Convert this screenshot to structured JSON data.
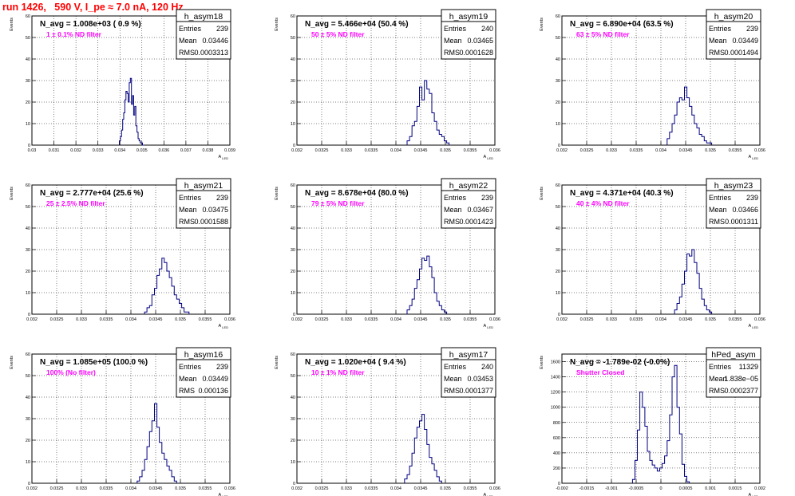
{
  "page_title": "run 1426,   590 V, I_pe ≈ 7.0 nA, 120 Hz",
  "y_axis_title": "Events",
  "x_axis_title": "A_LED",
  "stats_labels": {
    "entries": "Entries",
    "mean": "Mean",
    "rms": "RMS"
  },
  "colors": {
    "histogram": "#000080",
    "annotation": "#ff00ff",
    "title": "#ff0000",
    "grid": "#000000"
  },
  "chart_data": [
    {
      "type": "bar",
      "name": "h_asym18",
      "navg": "N_avg = 1.008e+03 ( 0.9 %)",
      "filter": "1 ± 0.1% ND filter",
      "stats": {
        "entries": "239",
        "mean": "0.03446",
        "rms": "0.0003313"
      },
      "xlim": [
        0.03,
        0.039
      ],
      "ylim": [
        0,
        60
      ],
      "xticks": [
        "0.03",
        "0.031",
        "0.032",
        "0.033",
        "0.034",
        "0.035",
        "0.036",
        "0.037",
        "0.038",
        "0.039"
      ],
      "yticks": [
        "0",
        "10",
        "20",
        "30",
        "40",
        "50",
        "60"
      ],
      "x": [
        0.034,
        0.03405,
        0.0341,
        0.03415,
        0.0342,
        0.03425,
        0.0343,
        0.03435,
        0.0344,
        0.03445,
        0.0345,
        0.03455,
        0.0346,
        0.03465,
        0.0347,
        0.03475,
        0.0348,
        0.03485,
        0.0349,
        0.03495,
        0.035,
        0.03505
      ],
      "values": [
        2,
        4,
        7,
        12,
        15,
        21,
        25,
        24,
        20,
        29,
        31,
        19,
        23,
        14,
        18,
        9,
        6,
        3,
        2,
        1,
        1,
        0
      ]
    },
    {
      "type": "bar",
      "name": "h_asym19",
      "navg": "N_avg = 5.466e+04 (50.4 %)",
      "filter": "50 ± 5% ND filter",
      "stats": {
        "entries": "240",
        "mean": "0.03465",
        "rms": "0.0001628"
      },
      "xlim": [
        0.032,
        0.036
      ],
      "ylim": [
        0,
        60
      ],
      "xticks": [
        "0.032",
        "0.0325",
        "0.033",
        "0.0335",
        "0.034",
        "0.0345",
        "0.035",
        "0.0355",
        "0.036"
      ],
      "yticks": [
        "0",
        "10",
        "20",
        "30",
        "40",
        "50",
        "60"
      ],
      "x": [
        0.03425,
        0.0343,
        0.03435,
        0.0344,
        0.03445,
        0.0345,
        0.03455,
        0.0346,
        0.03465,
        0.0347,
        0.03475,
        0.0348,
        0.03485,
        0.0349,
        0.03495,
        0.035,
        0.03505
      ],
      "values": [
        2,
        4,
        9,
        11,
        18,
        27,
        21,
        30,
        26,
        24,
        15,
        11,
        7,
        5,
        4,
        2,
        1
      ]
    },
    {
      "type": "bar",
      "name": "h_asym20",
      "navg": "N_avg = 6.890e+04 (63.5 %)",
      "filter": "63 ± 5% ND filter",
      "stats": {
        "entries": "239",
        "mean": "0.03449",
        "rms": "0.0001494"
      },
      "xlim": [
        0.032,
        0.036
      ],
      "ylim": [
        0,
        60
      ],
      "xticks": [
        "0.032",
        "0.0325",
        "0.033",
        "0.0335",
        "0.034",
        "0.0345",
        "0.035",
        "0.0355",
        "0.036"
      ],
      "yticks": [
        "0",
        "10",
        "20",
        "30",
        "40",
        "50",
        "60"
      ],
      "x": [
        0.03415,
        0.0342,
        0.03425,
        0.0343,
        0.03435,
        0.0344,
        0.03445,
        0.0345,
        0.03455,
        0.0346,
        0.03465,
        0.0347,
        0.03475,
        0.0348,
        0.03485,
        0.0349,
        0.03495,
        0.035
      ],
      "values": [
        3,
        6,
        10,
        14,
        20,
        22,
        21,
        27,
        22,
        18,
        14,
        10,
        8,
        5,
        4,
        2,
        1,
        1
      ]
    },
    {
      "type": "bar",
      "name": "h_asym21",
      "navg": "N_avg = 2.777e+04 (25.6 %)",
      "filter": "25 ± 2.5% ND filter",
      "stats": {
        "entries": "239",
        "mean": "0.03475",
        "rms": "0.0001588"
      },
      "xlim": [
        0.032,
        0.036
      ],
      "ylim": [
        0,
        60
      ],
      "xticks": [
        "0.032",
        "0.0325",
        "0.033",
        "0.0335",
        "0.034",
        "0.0345",
        "0.035",
        "0.0355",
        "0.036"
      ],
      "yticks": [
        "0",
        "10",
        "20",
        "30",
        "40",
        "50",
        "60"
      ],
      "x": [
        0.0343,
        0.03435,
        0.0344,
        0.03445,
        0.0345,
        0.03455,
        0.0346,
        0.03465,
        0.0347,
        0.03475,
        0.0348,
        0.03485,
        0.0349,
        0.03495,
        0.035,
        0.03505,
        0.0351,
        0.03515
      ],
      "values": [
        1,
        3,
        4,
        9,
        12,
        18,
        21,
        26,
        24,
        20,
        17,
        13,
        9,
        7,
        5,
        3,
        1,
        1
      ]
    },
    {
      "type": "bar",
      "name": "h_asym22",
      "navg": "N_avg = 8.678e+04 (80.0 %)",
      "filter": "79 ± 5% ND filter",
      "stats": {
        "entries": "239",
        "mean": "0.03467",
        "rms": "0.0001423"
      },
      "xlim": [
        0.032,
        0.036
      ],
      "ylim": [
        0,
        60
      ],
      "xticks": [
        "0.032",
        "0.0325",
        "0.033",
        "0.0335",
        "0.034",
        "0.0345",
        "0.035",
        "0.0355",
        "0.036"
      ],
      "yticks": [
        "0",
        "10",
        "20",
        "30",
        "40",
        "50",
        "60"
      ],
      "x": [
        0.03425,
        0.0343,
        0.03435,
        0.0344,
        0.03445,
        0.0345,
        0.03455,
        0.0346,
        0.03465,
        0.0347,
        0.03475,
        0.0348,
        0.03485,
        0.0349,
        0.03495,
        0.035
      ],
      "values": [
        2,
        4,
        7,
        12,
        16,
        21,
        26,
        25,
        27,
        22,
        17,
        10,
        6,
        4,
        2,
        1
      ]
    },
    {
      "type": "bar",
      "name": "h_asym23",
      "navg": "N_avg = 4.371e+04 (40.3 %)",
      "filter": "40 ± 4% ND filter",
      "stats": {
        "entries": "239",
        "mean": "0.03466",
        "rms": "0.0001311"
      },
      "xlim": [
        0.032,
        0.036
      ],
      "ylim": [
        0,
        60
      ],
      "xticks": [
        "0.032",
        "0.0325",
        "0.033",
        "0.0335",
        "0.034",
        "0.0345",
        "0.035",
        "0.0355",
        "0.036"
      ],
      "yticks": [
        "0",
        "10",
        "20",
        "30",
        "40",
        "50",
        "60"
      ],
      "x": [
        0.0343,
        0.03435,
        0.0344,
        0.03445,
        0.0345,
        0.03455,
        0.0346,
        0.03465,
        0.0347,
        0.03475,
        0.0348,
        0.03485,
        0.0349,
        0.03495,
        0.035
      ],
      "values": [
        2,
        5,
        8,
        14,
        20,
        28,
        27,
        30,
        24,
        19,
        12,
        7,
        4,
        2,
        1
      ]
    },
    {
      "type": "bar",
      "name": "h_asym16",
      "navg": "N_avg = 1.085e+05 (100.0 %)",
      "filter": "100% (No filter)",
      "stats": {
        "entries": "239",
        "mean": "0.03449",
        "rms": "0.000136"
      },
      "xlim": [
        0.032,
        0.036
      ],
      "ylim": [
        0,
        60
      ],
      "xticks": [
        "0.032",
        "0.0325",
        "0.033",
        "0.0335",
        "0.034",
        "0.0345",
        "0.035",
        "0.0355",
        "0.036"
      ],
      "yticks": [
        "0",
        "10",
        "20",
        "30",
        "40",
        "50",
        "60"
      ],
      "x": [
        0.03415,
        0.0342,
        0.03425,
        0.0343,
        0.03435,
        0.0344,
        0.03445,
        0.0345,
        0.03455,
        0.0346,
        0.03465,
        0.0347,
        0.03475,
        0.0348,
        0.03485,
        0.0349
      ],
      "values": [
        1,
        3,
        6,
        11,
        17,
        24,
        29,
        37,
        26,
        19,
        14,
        11,
        8,
        6,
        3,
        1
      ]
    },
    {
      "type": "bar",
      "name": "h_asym17",
      "navg": "N_avg = 1.020e+04 ( 9.4 %)",
      "filter": "10 ± 1% ND filter",
      "stats": {
        "entries": "240",
        "mean": "0.03453",
        "rms": "0.0001377"
      },
      "xlim": [
        0.032,
        0.036
      ],
      "ylim": [
        0,
        60
      ],
      "xticks": [
        "0.032",
        "0.0325",
        "0.033",
        "0.0335",
        "0.034",
        "0.0345",
        "0.035",
        "0.0355",
        "0.036"
      ],
      "yticks": [
        "0",
        "10",
        "20",
        "30",
        "40",
        "50",
        "60"
      ],
      "x": [
        0.0342,
        0.03425,
        0.0343,
        0.03435,
        0.0344,
        0.03445,
        0.0345,
        0.03455,
        0.0346,
        0.03465,
        0.0347,
        0.03475,
        0.0348,
        0.03485,
        0.0349
      ],
      "values": [
        2,
        4,
        8,
        14,
        21,
        26,
        29,
        32,
        25,
        18,
        12,
        9,
        6,
        3,
        1
      ]
    },
    {
      "type": "bar",
      "name": "hPed_asym",
      "navg": "N_avg = -1.789e-02 (-0.0%)",
      "filter": "Shutter Closed",
      "stats": {
        "entries": "11329",
        "mean": "1.838e−05",
        "rms": "0.0002377"
      },
      "xlim": [
        -0.002,
        0.002
      ],
      "ylim": [
        0,
        1700
      ],
      "xticks": [
        "-0.002",
        "-0.0015",
        "-0.001",
        "-0.0005",
        "0",
        "0.0005",
        "0.001",
        "0.0015",
        "0.002"
      ],
      "yticks": [
        "0",
        "200",
        "400",
        "600",
        "800",
        "1000",
        "1200",
        "1400",
        "1600"
      ],
      "x": [
        -0.00055,
        -0.0005,
        -0.00045,
        -0.0004,
        -0.00035,
        -0.0003,
        -0.00025,
        -0.0002,
        -0.00015,
        -0.0001,
        -5e-05,
        0.0,
        5e-05,
        0.0001,
        0.00015,
        0.0002,
        0.00025,
        0.0003,
        0.00035,
        0.0004,
        0.00045,
        0.0005,
        0.00055
      ],
      "values": [
        50,
        300,
        700,
        1200,
        1000,
        750,
        420,
        300,
        240,
        200,
        160,
        200,
        260,
        360,
        560,
        900,
        1400,
        1550,
        1000,
        650,
        250,
        90,
        20
      ]
    }
  ]
}
